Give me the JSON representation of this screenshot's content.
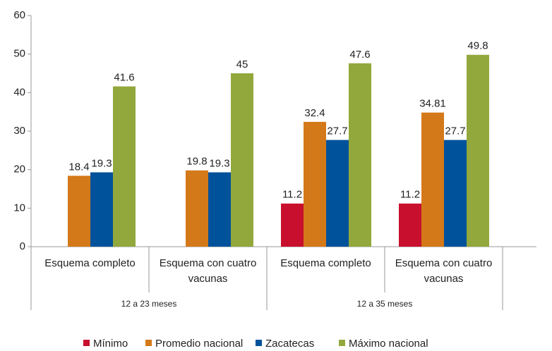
{
  "chart_data": {
    "type": "bar",
    "categories": [
      "Esquema completo",
      "Esquema con cuatro vacunas",
      "Esquema completo",
      "Esquema con cuatro vacunas"
    ],
    "group_labels": [
      "12 a 23 meses",
      "12 a 35 meses"
    ],
    "series": [
      {
        "name": "Mínimo",
        "color": "#c8102e",
        "values": [
          null,
          null,
          11.2,
          11.2
        ]
      },
      {
        "name": "Promedio nacional",
        "color": "#d4791a",
        "values": [
          18.4,
          19.8,
          32.4,
          34.81
        ]
      },
      {
        "name": "Zacatecas",
        "color": "#00529b",
        "values": [
          19.3,
          19.3,
          27.7,
          27.7
        ]
      },
      {
        "name": "Máximo nacional",
        "color": "#92a83d",
        "values": [
          41.6,
          45,
          47.6,
          49.8
        ]
      }
    ],
    "ylim": [
      0,
      60
    ],
    "yticks": [
      0,
      10,
      20,
      30,
      40,
      50,
      60
    ],
    "legend": "bottom"
  }
}
